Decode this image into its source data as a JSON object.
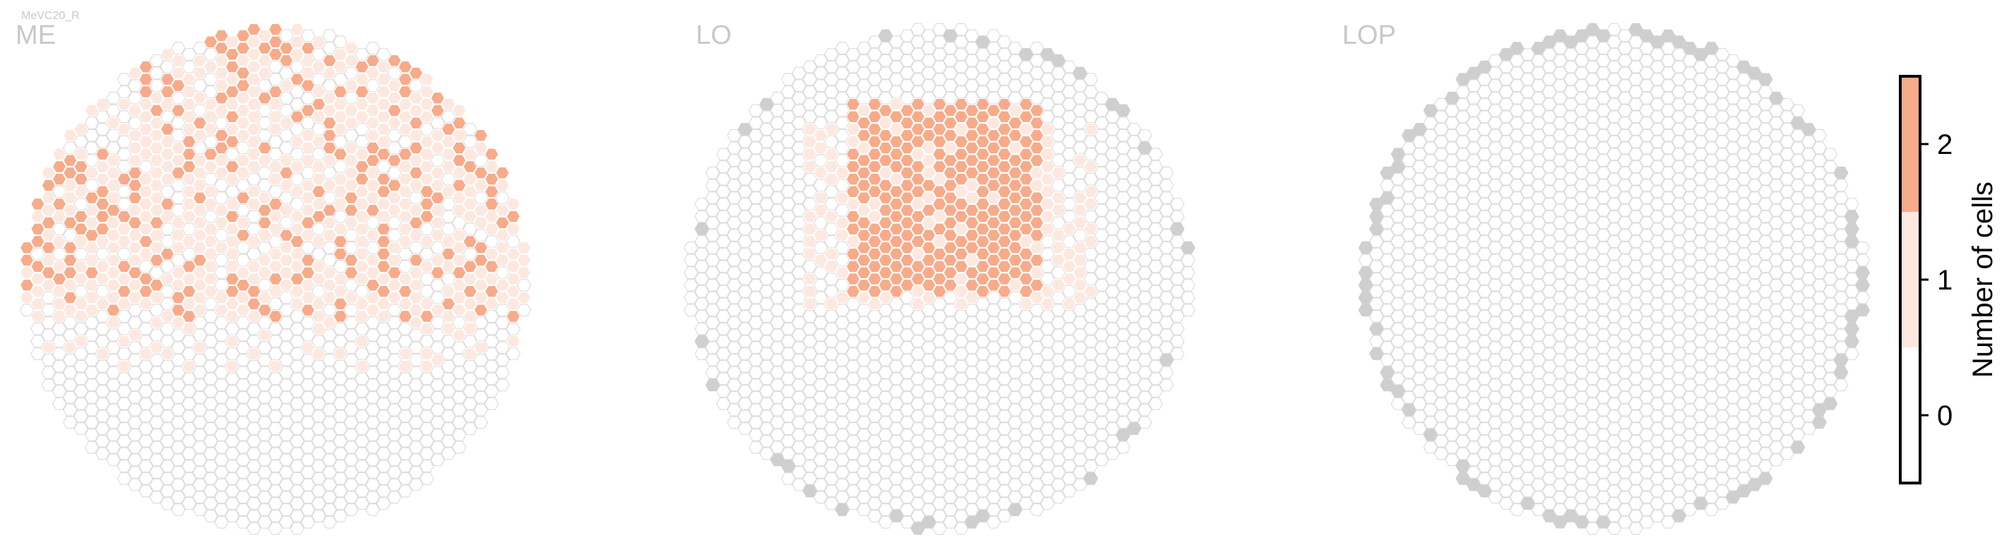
{
  "figure": {
    "corner_label": "MeVC20_R"
  },
  "chart_data": {
    "type": "heatmap",
    "description_type": "hexagonal column maps",
    "panels": [
      {
        "title": "ME",
        "counts_legend": {
          "0": "white",
          "1": "light peach",
          "2": "peach"
        },
        "rows": [
          {
            "cols": [
              0,
              0,
              0,
              0,
              0,
              0,
              0,
              0,
              0,
              0,
              0,
              0,
              0,
              0,
              0,
              0,
              0,
              0,
              0,
              0,
              0,
              0,
              0,
              0,
              0,
              0,
              0,
              0,
              0,
              0,
              0,
              0,
              0,
              0,
              0,
              0,
              0,
              0
            ]
          }
        ]
      },
      {
        "title": "LO",
        "rows": []
      },
      {
        "title": "LOP",
        "rows": []
      }
    ],
    "colorbar": {
      "label": "Number of cells",
      "ticks": [
        "0",
        "1",
        "2"
      ],
      "bins": [
        {
          "value": 0,
          "color": "#ffffff"
        },
        {
          "value": 1,
          "color": "#fde8df"
        },
        {
          "value": 2,
          "color": "#f7ab8a"
        }
      ]
    },
    "no_data_color": "#cfcfcf",
    "cell_stroke_color": "#dedede"
  }
}
